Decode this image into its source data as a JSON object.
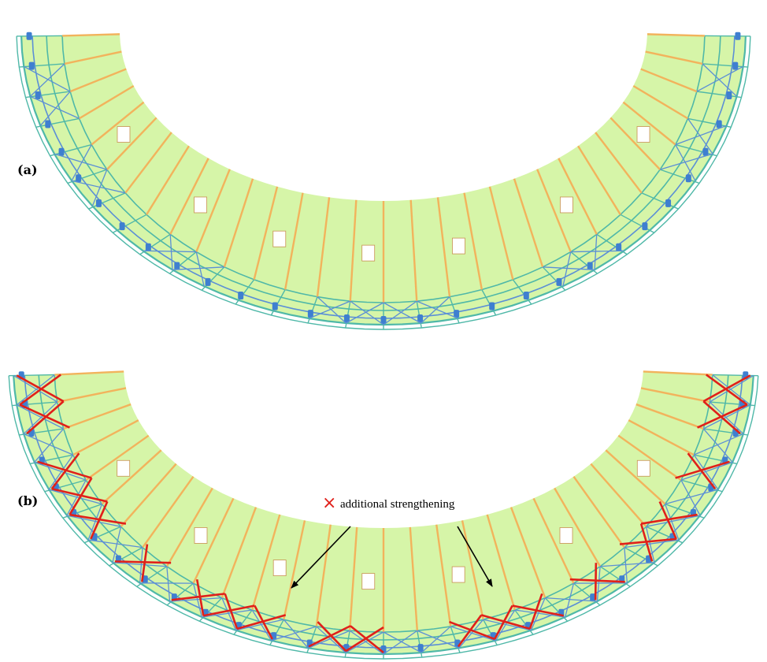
{
  "figure": {
    "panels": [
      {
        "label": "(a)",
        "variant": "original"
      },
      {
        "label": "(b)",
        "variant": "strengthened"
      }
    ],
    "legend": {
      "marker": "×",
      "text": "additional strengthening",
      "marker_color": "#e0201a"
    },
    "colors": {
      "roof_fill": "#d6f5a8",
      "purlin": "#f2b35c",
      "truss_chord": "#4fb8a8",
      "bracing": "#5b8fd6",
      "bearing": "#3f7fd0",
      "strengthening": "#e0201a",
      "opening": "#ffffff",
      "arrow": "#000000"
    }
  }
}
